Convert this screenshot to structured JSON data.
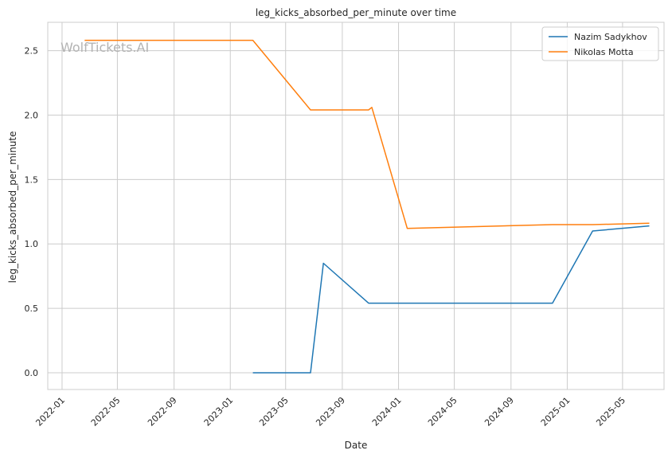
{
  "chart_data": {
    "type": "line",
    "title": "leg_kicks_absorbed_per_minute over time",
    "xlabel": "Date",
    "ylabel": "leg_kicks_absorbed_per_minute",
    "watermark": "WolfTickets.AI",
    "xlim": [
      "2021-12-01",
      "2025-07-30"
    ],
    "ylim": [
      -0.13,
      2.72
    ],
    "x_ticks": [
      "2022-01",
      "2022-05",
      "2022-09",
      "2023-01",
      "2023-05",
      "2023-09",
      "2024-01",
      "2024-05",
      "2024-09",
      "2025-01",
      "2025-05"
    ],
    "y_ticks": [
      "0.0",
      "0.5",
      "1.0",
      "1.5",
      "2.0",
      "2.5"
    ],
    "grid": true,
    "legend_position": "top-right",
    "series": [
      {
        "name": "Nazim Sadykhov",
        "color": "#1f77b4",
        "points": [
          [
            "2023-02-19",
            0.0
          ],
          [
            "2023-06-24",
            0.0
          ],
          [
            "2023-07-22",
            0.85
          ],
          [
            "2023-10-28",
            0.54
          ],
          [
            "2024-11-30",
            0.54
          ],
          [
            "2025-02-25",
            1.1
          ],
          [
            "2025-06-28",
            1.14
          ]
        ]
      },
      {
        "name": "Nikolas Motta",
        "color": "#ff7f0e",
        "points": [
          [
            "2022-02-19",
            2.58
          ],
          [
            "2023-02-19",
            2.58
          ],
          [
            "2023-06-24",
            2.04
          ],
          [
            "2023-10-28",
            2.04
          ],
          [
            "2023-11-04",
            2.06
          ],
          [
            "2024-01-20",
            1.12
          ],
          [
            "2024-11-30",
            1.15
          ],
          [
            "2025-02-25",
            1.15
          ],
          [
            "2025-06-28",
            1.16
          ]
        ]
      }
    ]
  }
}
